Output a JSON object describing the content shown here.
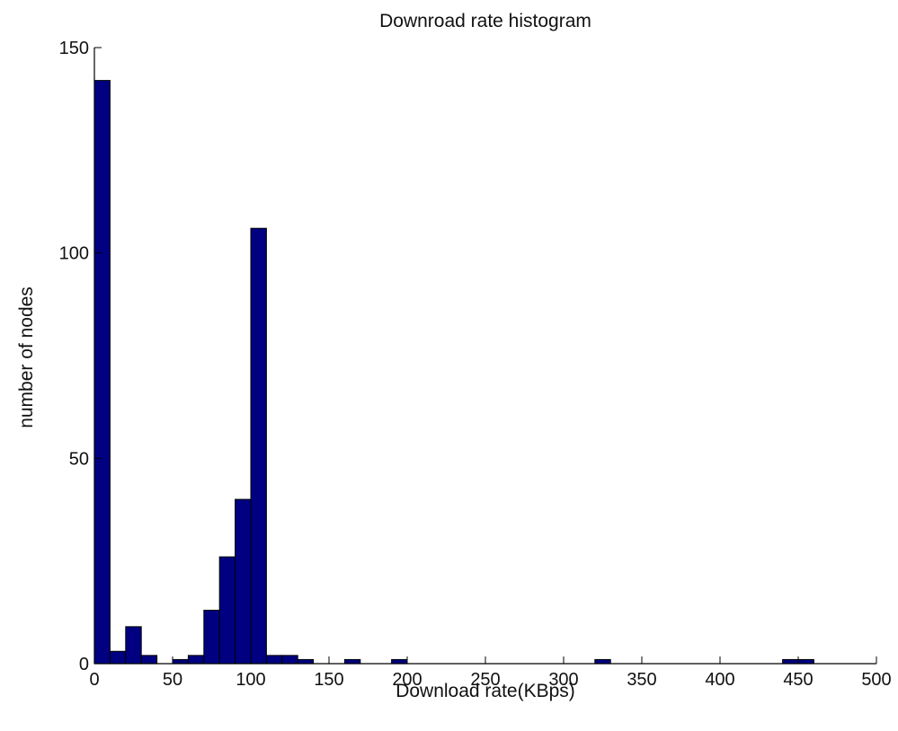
{
  "chart_data": {
    "type": "bar",
    "title": "Downroad rate histogram",
    "xlabel": "Download rate(KBps)",
    "ylabel": "number of nodes",
    "xlim": [
      0,
      500
    ],
    "ylim": [
      0,
      150
    ],
    "xticks": [
      0,
      50,
      100,
      150,
      200,
      250,
      300,
      350,
      400,
      450,
      500
    ],
    "yticks": [
      0,
      50,
      100,
      150
    ],
    "grid": false,
    "bin_width": 10,
    "bar_color": "#000080",
    "bins": [
      {
        "x": 0,
        "value": 142
      },
      {
        "x": 10,
        "value": 3
      },
      {
        "x": 20,
        "value": 9
      },
      {
        "x": 30,
        "value": 2
      },
      {
        "x": 50,
        "value": 1
      },
      {
        "x": 60,
        "value": 2
      },
      {
        "x": 70,
        "value": 13
      },
      {
        "x": 80,
        "value": 26
      },
      {
        "x": 90,
        "value": 40
      },
      {
        "x": 100,
        "value": 106
      },
      {
        "x": 110,
        "value": 2
      },
      {
        "x": 120,
        "value": 2
      },
      {
        "x": 130,
        "value": 1
      },
      {
        "x": 160,
        "value": 1
      },
      {
        "x": 190,
        "value": 1
      },
      {
        "x": 320,
        "value": 1
      },
      {
        "x": 440,
        "value": 1
      },
      {
        "x": 450,
        "value": 1
      }
    ]
  }
}
